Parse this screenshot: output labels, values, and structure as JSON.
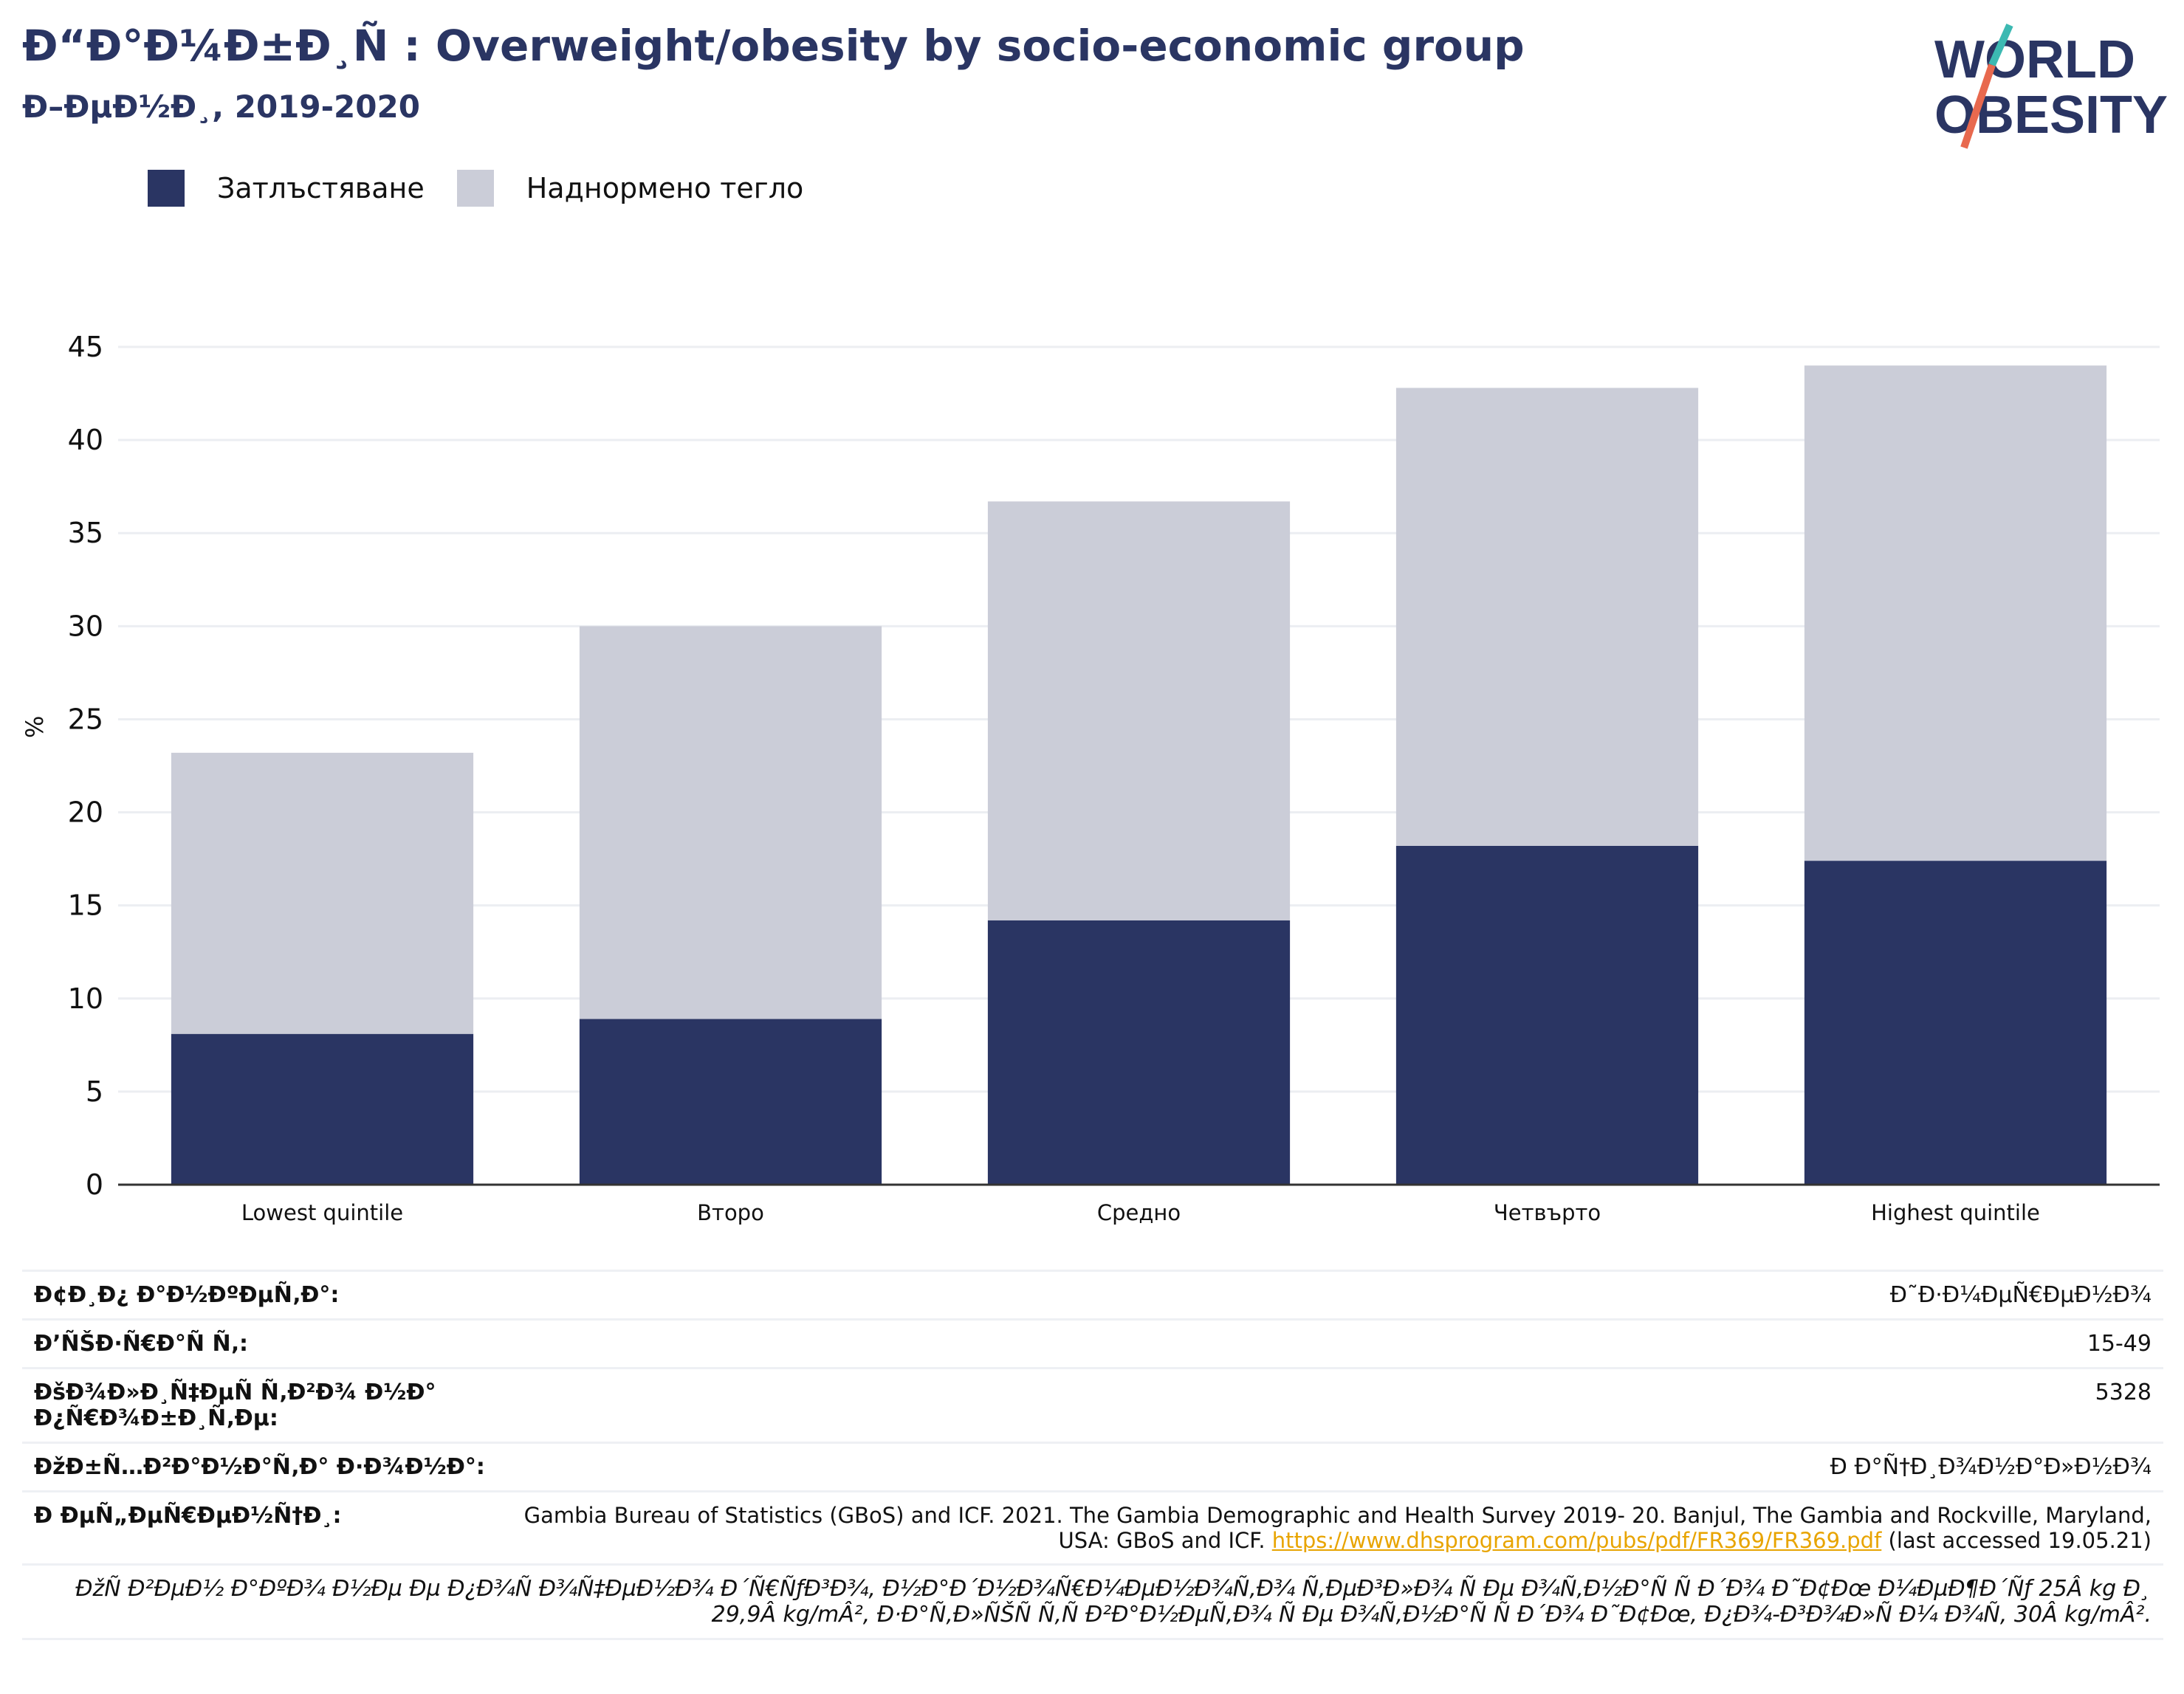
{
  "header": {
    "title": "Ð“Ð°Ð¼Ð±Ð¸Ñ : Overweight/obesity by socio-economic group",
    "subtitle": "Ð–ÐµÐ½Ð¸, 2019-2020"
  },
  "logo": {
    "line1": "WORLD",
    "line2": "OBESITY",
    "accent": "#3cb9b2",
    "slash": "#e8694e"
  },
  "legend": [
    {
      "label": "Затлъстяване",
      "color": "#2a3563"
    },
    {
      "label": "Наднормено тегло",
      "color": "#cbcdd8"
    }
  ],
  "chart_data": {
    "type": "bar",
    "stacked": true,
    "categories": [
      "Lowest quintile",
      "Второ",
      "Средно",
      "Четвърто",
      "Highest quintile"
    ],
    "series": [
      {
        "name": "Затлъстяване",
        "color": "#2a3563",
        "values": [
          8.1,
          8.9,
          14.2,
          18.2,
          17.4
        ]
      },
      {
        "name": "Наднормено тегло",
        "color": "#cbcdd8",
        "values": [
          15.1,
          21.1,
          22.5,
          24.6,
          26.6
        ]
      }
    ],
    "ylabel": "%",
    "ylim": [
      0,
      45
    ],
    "yticks": [
      0,
      5,
      10,
      15,
      20,
      25,
      30,
      35,
      40,
      45
    ],
    "grid": true
  },
  "meta": {
    "rows": [
      {
        "key": "Ð¢Ð¸Ð¿ Ð°Ð½ÐºÐµÑ‚Ð°:",
        "value": "Ð˜Ð·Ð¼ÐµÑ€ÐµÐ½Ð¾"
      },
      {
        "key": "Ð’ÑŠÐ·Ñ€Ð°Ñ Ñ‚:",
        "value": "15-49"
      },
      {
        "key": "ÐšÐ¾Ð»Ð¸Ñ‡ÐµÑ Ñ‚Ð²Ð¾ Ð½Ð° Ð¿Ñ€Ð¾Ð±Ð¸Ñ‚Ðµ:",
        "value": "5328"
      },
      {
        "key": "ÐžÐ±Ñ…Ð²Ð°Ð½Ð°Ñ‚Ð° Ð·Ð¾Ð½Ð°:",
        "value": "Ð Ð°Ñ†Ð¸Ð¾Ð½Ð°Ð»Ð½Ð¾"
      }
    ],
    "source_key": "Ð ÐµÑ„ÐµÑ€ÐµÐ½Ñ†Ð¸:",
    "source_text": "Gambia Bureau of Statistics (GBoS) and ICF. 2021. The Gambia Demographic and Health Survey 2019- 20. Banjul, The Gambia and Rockville, Maryland, USA: GBoS and ICF.",
    "source_link": "https://www.dhsprogram.com/pubs/pdf/FR369/FR369.pdf",
    "source_tail": "(last accessed 19.05.21)",
    "note": "ÐžÑ Ð²ÐµÐ½ Ð°ÐºÐ¾ Ð½Ðµ Ðµ Ð¿Ð¾Ñ Ð¾Ñ‡ÐµÐ½Ð¾ Ð´Ñ€ÑƒÐ³Ð¾, Ð½Ð°Ð´Ð½Ð¾Ñ€Ð¼ÐµÐ½Ð¾Ñ‚Ð¾ Ñ‚ÐµÐ³Ð»Ð¾ Ñ Ðµ Ð¾Ñ‚Ð½Ð°Ñ Ñ  Ð´Ð¾ Ð˜Ð¢Ðœ Ð¼ÐµÐ¶Ð´Ñƒ 25Â kg Ð¸ 29,9Â kg/mÂ², Ð·Ð°Ñ‚Ð»ÑŠÑ Ñ‚Ñ Ð²Ð°Ð½ÐµÑ‚Ð¾ Ñ Ðµ Ð¾Ñ‚Ð½Ð°Ñ Ñ  Ð´Ð¾ Ð˜Ð¢Ðœ, Ð¿Ð¾-Ð³Ð¾Ð»Ñ Ð¼ Ð¾Ñ‚ 30Â kg/mÂ²."
  }
}
